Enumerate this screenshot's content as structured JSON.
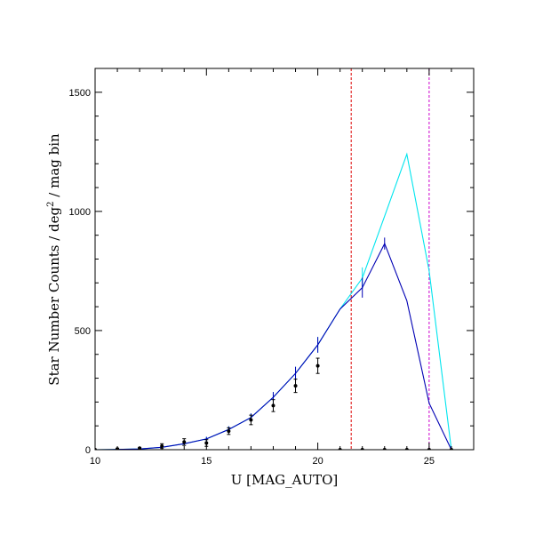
{
  "chart_data": {
    "type": "line",
    "xlabel": "U [MAG_AUTO]",
    "ylabel_main": "Star Number Counts / deg",
    "ylabel_sup": "2",
    "ylabel_tail": " / mag bin",
    "xlim": [
      10,
      27
    ],
    "ylim": [
      0,
      1600
    ],
    "xticks": [
      10,
      15,
      20,
      25
    ],
    "yticks": [
      0,
      500,
      1000,
      1500
    ],
    "grid": false,
    "series": [
      {
        "color": "#00e5ee",
        "style": "line-with-errorbars",
        "x": [
          10,
          11,
          12,
          13,
          14,
          15,
          16,
          17,
          18,
          19,
          20,
          21,
          22,
          23,
          24,
          25,
          26
        ],
        "y": [
          0,
          1,
          3,
          10,
          25,
          45,
          85,
          135,
          220,
          320,
          440,
          590,
          720,
          980,
          1240,
          750,
          0
        ],
        "err": [
          0,
          1,
          2,
          4,
          7,
          9,
          13,
          17,
          22,
          28,
          33,
          0,
          45,
          0,
          0,
          0,
          0
        ]
      },
      {
        "color": "#0000b4",
        "style": "line-with-errorbars",
        "x": [
          10,
          11,
          12,
          13,
          14,
          15,
          16,
          17,
          18,
          19,
          20,
          21,
          22,
          23,
          24,
          25,
          26
        ],
        "y": [
          0,
          1,
          3,
          10,
          25,
          45,
          85,
          135,
          220,
          320,
          440,
          590,
          680,
          865,
          625,
          195,
          0
        ],
        "err": [
          0,
          1,
          2,
          4,
          7,
          9,
          13,
          17,
          22,
          28,
          33,
          0,
          42,
          25,
          0,
          0,
          0
        ]
      },
      {
        "color": "#000000",
        "style": "points-with-errorbars",
        "x": [
          10,
          11,
          12,
          13,
          14,
          15,
          16,
          17,
          18,
          19,
          20,
          21,
          22,
          23,
          24,
          25,
          26
        ],
        "y": [
          0,
          3,
          5,
          15,
          32,
          28,
          78,
          125,
          185,
          268,
          352,
          0,
          0,
          0,
          0,
          0,
          0
        ],
        "err": [
          0,
          3,
          5,
          10,
          14,
          14,
          14,
          20,
          25,
          28,
          32,
          0,
          0,
          0,
          0,
          0,
          0
        ]
      }
    ],
    "vlines": [
      {
        "x": 21.5,
        "color": "#dd0000",
        "style": "dashed"
      },
      {
        "x": 25.0,
        "color": "#cc00cc",
        "style": "dashed"
      }
    ]
  }
}
